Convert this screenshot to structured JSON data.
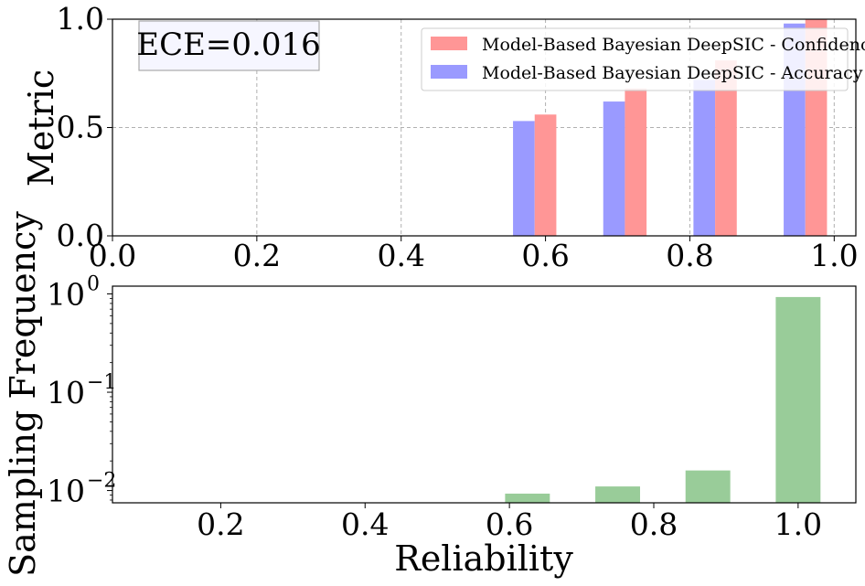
{
  "colors": {
    "confidence": "#ff9696",
    "accuracy": "#9a9aff",
    "frequency": "#99cc99",
    "grid": "#b0b0b0",
    "ece_box_fill": "#f6f6ff",
    "ece_box_border": "#aaaaaa"
  },
  "top_chart": {
    "ece_label": "ECE=0.016",
    "ylabel": "Metric"
  },
  "bottom_chart": {
    "ylabel": "Sampling Frequency",
    "xlabel": "Reliability"
  },
  "chart_data": [
    {
      "type": "bar",
      "ylabel": "Metric",
      "xlim": [
        0.0,
        1.03
      ],
      "ylim": [
        0.0,
        1.0
      ],
      "xticks": [
        "0.0",
        "0.2",
        "0.4",
        "0.6",
        "0.8",
        "1.0"
      ],
      "yticks": [
        "0.0",
        "0.5",
        "1.0"
      ],
      "grid": true,
      "legend_position": "top-right",
      "annotation": "ECE=0.016",
      "series": [
        {
          "name": "Model-Based Bayesian DeepSIC - Confidence",
          "x": [
            0.6,
            0.725,
            0.85,
            0.975
          ],
          "values": [
            0.56,
            0.68,
            0.81,
            1.0
          ]
        },
        {
          "name": "Model-Based Bayesian DeepSIC - Accuracy",
          "x": [
            0.57,
            0.695,
            0.82,
            0.945
          ],
          "values": [
            0.53,
            0.62,
            0.72,
            0.98
          ]
        }
      ]
    },
    {
      "type": "bar",
      "ylabel": "Sampling Frequency",
      "xlabel": "Reliability",
      "yscale": "log",
      "xlim": [
        0.05,
        1.08
      ],
      "ylim": [
        0.0075,
        1.2
      ],
      "xticks": [
        "0.2",
        "0.4",
        "0.6",
        "0.8",
        "1.0"
      ],
      "yticks": [
        "10^-2",
        "10^-1",
        "10^0"
      ],
      "grid": false,
      "series": [
        {
          "x": [
            0.625,
            0.75,
            0.875,
            1.0
          ],
          "values": [
            0.0093,
            0.011,
            0.016,
            0.93
          ]
        }
      ]
    }
  ]
}
